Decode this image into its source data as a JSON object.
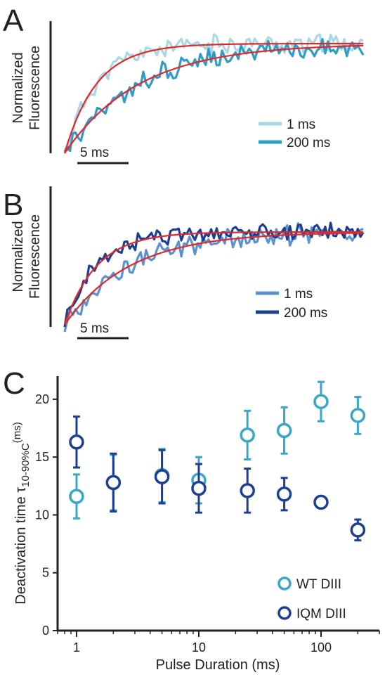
{
  "chart_data": [
    {
      "type": "line",
      "panel_label": "A",
      "ylabel": [
        "Normalized",
        "Fluorescence"
      ],
      "scale_bar": "5 ms",
      "series": [
        {
          "name": "1 ms",
          "color": "#a8d8e6",
          "tau_ms": 3.2,
          "noise": 0.07
        },
        {
          "name": "200 ms",
          "color": "#2f9cc8",
          "tau_ms": 7.5,
          "noise": 0.07
        }
      ],
      "fit_color": "#e02a2a",
      "time_ms": [
        0,
        30
      ]
    },
    {
      "type": "line",
      "panel_label": "B",
      "ylabel": [
        "Normalized",
        "Fluorescence"
      ],
      "scale_bar": "5 ms",
      "series": [
        {
          "name": "1 ms",
          "color": "#5b93d0",
          "tau_ms": 6.5,
          "noise": 0.09
        },
        {
          "name": "200 ms",
          "color": "#1c3f94",
          "tau_ms": 3.2,
          "noise": 0.07
        }
      ],
      "fit_color": "#e02a2a",
      "time_ms": [
        0,
        30
      ]
    },
    {
      "type": "scatter",
      "panel_label": "C",
      "xlabel": "Pulse Duration (ms)",
      "ylabel_main": "Deactivation time τ",
      "ylabel_sub": "10-90%C",
      "ylabel_unit": "(ms)",
      "xscale": "log",
      "xlim": [
        0.7,
        300
      ],
      "ylim": [
        0,
        22
      ],
      "xticks": [
        1,
        10,
        100
      ],
      "yticks": [
        0,
        5,
        10,
        15,
        20
      ],
      "series": [
        {
          "name": "WT DIII",
          "color": "#3aa6c9",
          "x": [
            1,
            2,
            5,
            10,
            25,
            50,
            100,
            200
          ],
          "y": [
            11.6,
            12.8,
            13.4,
            13.0,
            16.9,
            17.3,
            19.8,
            18.6
          ],
          "err": [
            1.9,
            2.4,
            2.3,
            2.0,
            2.1,
            2.0,
            1.7,
            1.6
          ]
        },
        {
          "name": "IQM DIII",
          "color": "#1c3f94",
          "x": [
            1,
            2,
            5,
            10,
            25,
            50,
            100,
            200
          ],
          "y": [
            16.3,
            12.8,
            13.3,
            12.3,
            12.1,
            11.8,
            11.1,
            8.7
          ],
          "err": [
            2.2,
            2.5,
            2.3,
            2.1,
            1.9,
            1.4,
            0,
            0.9
          ]
        }
      ],
      "legend_position": "bottom-right"
    }
  ]
}
